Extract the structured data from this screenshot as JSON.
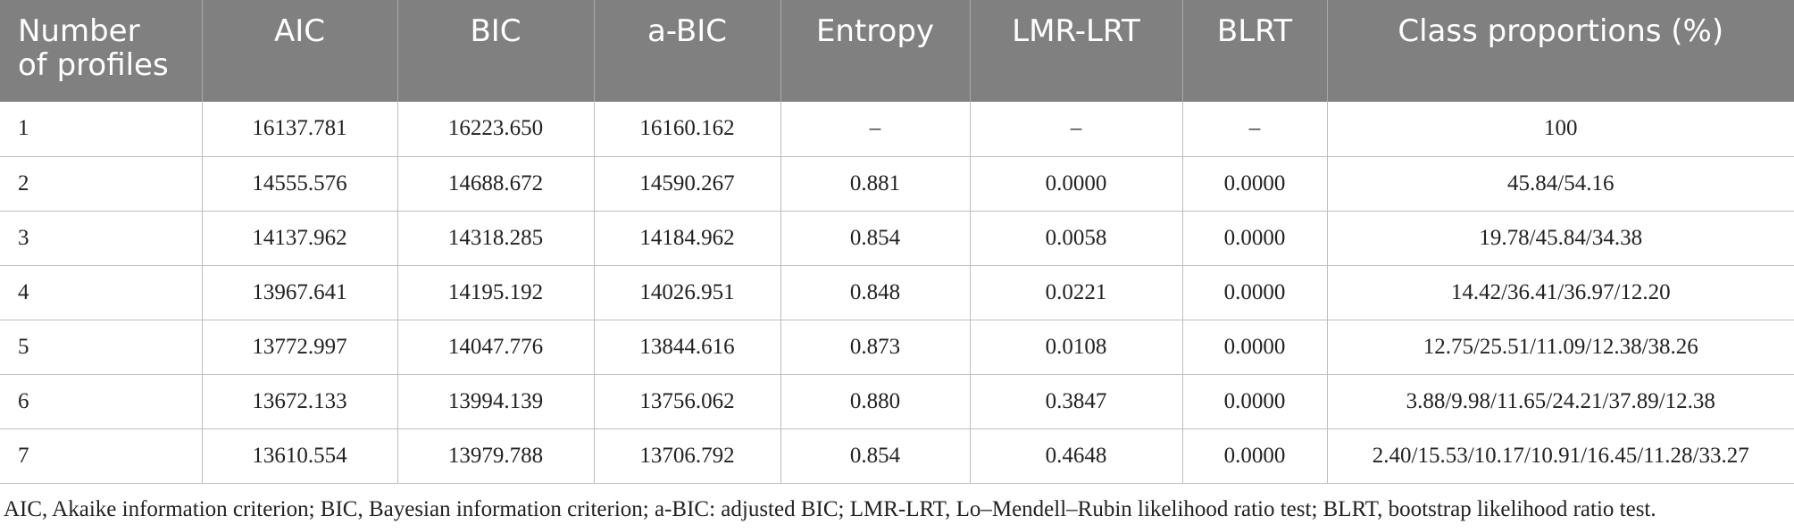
{
  "table": {
    "columns": [
      "Number of profiles",
      "AIC",
      "BIC",
      "a-BIC",
      "Entropy",
      "LMR-LRT",
      "BLRT",
      "Class proportions (%)"
    ],
    "header_lines": {
      "profiles_line1": "Number",
      "profiles_line2": "of profiles"
    },
    "rows": [
      [
        "1",
        "16137.781",
        "16223.650",
        "16160.162",
        "–",
        "–",
        "–",
        "100"
      ],
      [
        "2",
        "14555.576",
        "14688.672",
        "14590.267",
        "0.881",
        "0.0000",
        "0.0000",
        "45.84/54.16"
      ],
      [
        "3",
        "14137.962",
        "14318.285",
        "14184.962",
        "0.854",
        "0.0058",
        "0.0000",
        "19.78/45.84/34.38"
      ],
      [
        "4",
        "13967.641",
        "14195.192",
        "14026.951",
        "0.848",
        "0.0221",
        "0.0000",
        "14.42/36.41/36.97/12.20"
      ],
      [
        "5",
        "13772.997",
        "14047.776",
        "13844.616",
        "0.873",
        "0.0108",
        "0.0000",
        "12.75/25.51/11.09/12.38/38.26"
      ],
      [
        "6",
        "13672.133",
        "13994.139",
        "13756.062",
        "0.880",
        "0.3847",
        "0.0000",
        "3.88/9.98/11.65/24.21/37.89/12.38"
      ],
      [
        "7",
        "13610.554",
        "13979.788",
        "13706.792",
        "0.854",
        "0.4648",
        "0.0000",
        "2.40/15.53/10.17/10.91/16.45/11.28/33.27"
      ]
    ]
  },
  "footnote": "AIC, Akaike information criterion; BIC, Bayesian information criterion; a-BIC: adjusted BIC; LMR-LRT, Lo–Mendell–Rubin likelihood ratio test; BLRT, bootstrap likelihood ratio test.",
  "colors": {
    "header_background": "#808080",
    "header_text": "#ffffff",
    "grid_line": "#bdbdbd"
  }
}
